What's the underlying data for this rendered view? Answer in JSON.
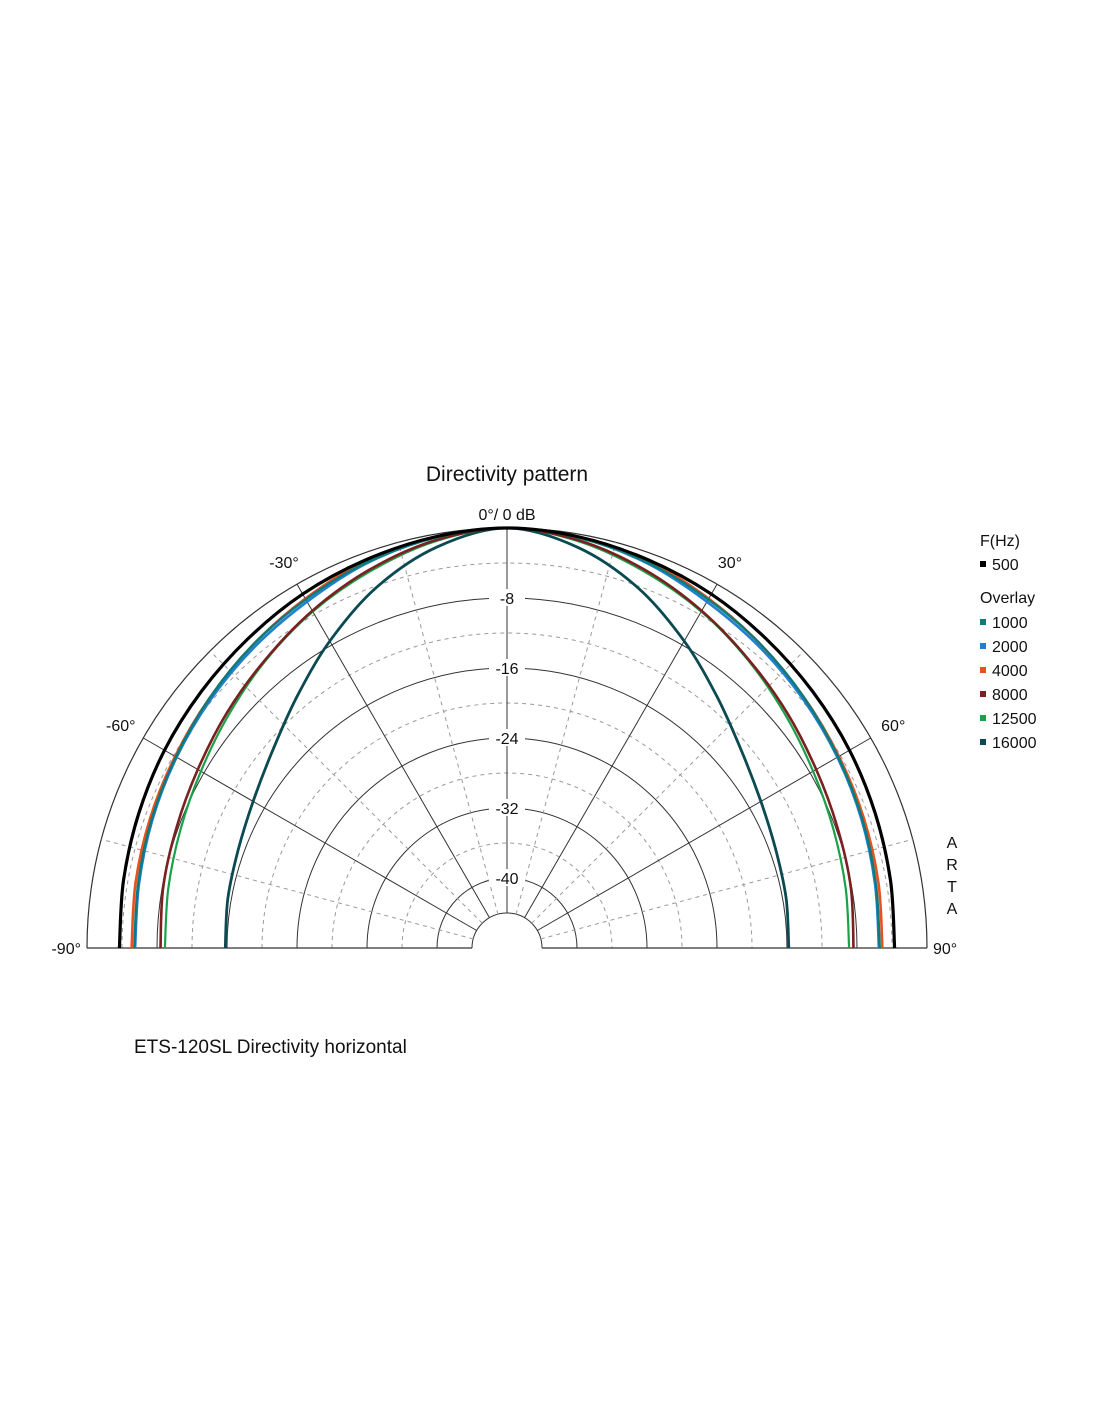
{
  "chart_data": {
    "type": "polar",
    "title": "Directivity pattern",
    "polar": {
      "span_degrees": [
        -90,
        90
      ],
      "zero_label": "0°/ 0 dB",
      "angle_ticks": [
        {
          "angle": -90,
          "label": "-90°"
        },
        {
          "angle": -60,
          "label": "-60°"
        },
        {
          "angle": -30,
          "label": "-30°"
        },
        {
          "angle": 30,
          "label": "30°"
        },
        {
          "angle": 60,
          "label": "60°"
        },
        {
          "angle": 90,
          "label": "90°"
        }
      ],
      "radial_ticks": [
        {
          "db": -8,
          "label": "-8"
        },
        {
          "db": -16,
          "label": "-16"
        },
        {
          "db": -24,
          "label": "-24"
        },
        {
          "db": -32,
          "label": "-32"
        },
        {
          "db": -40,
          "label": "-40"
        }
      ],
      "db_range": [
        -44,
        0
      ],
      "angle_grid_step": 15,
      "db_minor_step": 4,
      "grid": true
    },
    "legend": {
      "placement": "right",
      "header": "F(Hz)",
      "overlay_header": "Overlay",
      "base": "500"
    },
    "angles": [
      0,
      10,
      20,
      30,
      40,
      50,
      60,
      70,
      80,
      90
    ],
    "series": [
      {
        "name": "500",
        "color": "#000000",
        "width": 3.2,
        "db": [
          0,
          -0.3,
          -0.8,
          -1.3,
          -1.9,
          -2.4,
          -2.8,
          -3.2,
          -3.5,
          -3.7
        ]
      },
      {
        "name": "1000",
        "color": "#0f7a78",
        "width": 2.4,
        "db": [
          0,
          -0.4,
          -1.1,
          -2.0,
          -2.8,
          -3.6,
          -4.3,
          -4.8,
          -5.2,
          -5.4
        ]
      },
      {
        "name": "2000",
        "color": "#1f7fd0",
        "width": 2.6,
        "db": [
          0,
          -0.4,
          -1.2,
          -2.3,
          -3.1,
          -3.8,
          -4.4,
          -4.9,
          -5.3,
          -5.5
        ]
      },
      {
        "name": "4000",
        "color": "#e8501e",
        "width": 2.6,
        "db": [
          0,
          -0.3,
          -0.9,
          -1.9,
          -2.8,
          -3.6,
          -4.2,
          -4.6,
          -4.9,
          -5.1
        ]
      },
      {
        "name": "8000",
        "color": "#7a2020",
        "width": 2.6,
        "db": [
          0,
          -0.7,
          -2.0,
          -3.5,
          -5.0,
          -6.2,
          -7.2,
          -7.8,
          -8.1,
          -8.4
        ]
      },
      {
        "name": "12500",
        "color": "#1aa048",
        "width": 2.2,
        "db": [
          0,
          -0.8,
          -2.2,
          -3.6,
          -5.1,
          -6.5,
          -7.6,
          -8.3,
          -8.7,
          -8.9
        ]
      },
      {
        "name": "16000",
        "color": "#0c4a52",
        "width": 2.8,
        "db": [
          0,
          -1.5,
          -4.2,
          -7.5,
          -10.6,
          -13.0,
          -14.5,
          -15.3,
          -15.6,
          -15.8
        ]
      }
    ],
    "side_text": "ARTA"
  },
  "caption": "ETS-120SL Directivity horizontal"
}
